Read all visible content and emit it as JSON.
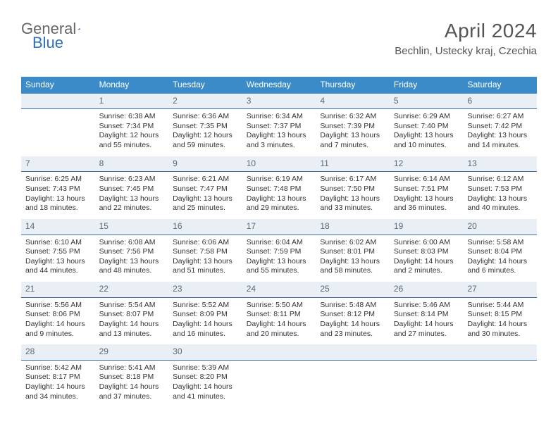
{
  "brand": {
    "part1": "General",
    "part2": "Blue"
  },
  "title": "April 2024",
  "location": "Bechlin, Ustecky kraj, Czechia",
  "colors": {
    "header_bg": "#3B8BC8",
    "header_text": "#ffffff",
    "daynum_bg": "#E9EFF4",
    "daynum_border": "#3B6FA0",
    "text": "#333333",
    "title_color": "#555555"
  },
  "weekdays": [
    "Sunday",
    "Monday",
    "Tuesday",
    "Wednesday",
    "Thursday",
    "Friday",
    "Saturday"
  ],
  "weeks": [
    {
      "nums": [
        "",
        "1",
        "2",
        "3",
        "4",
        "5",
        "6"
      ],
      "cells": [
        [],
        [
          "Sunrise: 6:38 AM",
          "Sunset: 7:34 PM",
          "Daylight: 12 hours and 55 minutes."
        ],
        [
          "Sunrise: 6:36 AM",
          "Sunset: 7:35 PM",
          "Daylight: 12 hours and 59 minutes."
        ],
        [
          "Sunrise: 6:34 AM",
          "Sunset: 7:37 PM",
          "Daylight: 13 hours and 3 minutes."
        ],
        [
          "Sunrise: 6:32 AM",
          "Sunset: 7:39 PM",
          "Daylight: 13 hours and 7 minutes."
        ],
        [
          "Sunrise: 6:29 AM",
          "Sunset: 7:40 PM",
          "Daylight: 13 hours and 10 minutes."
        ],
        [
          "Sunrise: 6:27 AM",
          "Sunset: 7:42 PM",
          "Daylight: 13 hours and 14 minutes."
        ]
      ]
    },
    {
      "nums": [
        "7",
        "8",
        "9",
        "10",
        "11",
        "12",
        "13"
      ],
      "cells": [
        [
          "Sunrise: 6:25 AM",
          "Sunset: 7:43 PM",
          "Daylight: 13 hours and 18 minutes."
        ],
        [
          "Sunrise: 6:23 AM",
          "Sunset: 7:45 PM",
          "Daylight: 13 hours and 22 minutes."
        ],
        [
          "Sunrise: 6:21 AM",
          "Sunset: 7:47 PM",
          "Daylight: 13 hours and 25 minutes."
        ],
        [
          "Sunrise: 6:19 AM",
          "Sunset: 7:48 PM",
          "Daylight: 13 hours and 29 minutes."
        ],
        [
          "Sunrise: 6:17 AM",
          "Sunset: 7:50 PM",
          "Daylight: 13 hours and 33 minutes."
        ],
        [
          "Sunrise: 6:14 AM",
          "Sunset: 7:51 PM",
          "Daylight: 13 hours and 36 minutes."
        ],
        [
          "Sunrise: 6:12 AM",
          "Sunset: 7:53 PM",
          "Daylight: 13 hours and 40 minutes."
        ]
      ]
    },
    {
      "nums": [
        "14",
        "15",
        "16",
        "17",
        "18",
        "19",
        "20"
      ],
      "cells": [
        [
          "Sunrise: 6:10 AM",
          "Sunset: 7:55 PM",
          "Daylight: 13 hours and 44 minutes."
        ],
        [
          "Sunrise: 6:08 AM",
          "Sunset: 7:56 PM",
          "Daylight: 13 hours and 48 minutes."
        ],
        [
          "Sunrise: 6:06 AM",
          "Sunset: 7:58 PM",
          "Daylight: 13 hours and 51 minutes."
        ],
        [
          "Sunrise: 6:04 AM",
          "Sunset: 7:59 PM",
          "Daylight: 13 hours and 55 minutes."
        ],
        [
          "Sunrise: 6:02 AM",
          "Sunset: 8:01 PM",
          "Daylight: 13 hours and 58 minutes."
        ],
        [
          "Sunrise: 6:00 AM",
          "Sunset: 8:03 PM",
          "Daylight: 14 hours and 2 minutes."
        ],
        [
          "Sunrise: 5:58 AM",
          "Sunset: 8:04 PM",
          "Daylight: 14 hours and 6 minutes."
        ]
      ]
    },
    {
      "nums": [
        "21",
        "22",
        "23",
        "24",
        "25",
        "26",
        "27"
      ],
      "cells": [
        [
          "Sunrise: 5:56 AM",
          "Sunset: 8:06 PM",
          "Daylight: 14 hours and 9 minutes."
        ],
        [
          "Sunrise: 5:54 AM",
          "Sunset: 8:07 PM",
          "Daylight: 14 hours and 13 minutes."
        ],
        [
          "Sunrise: 5:52 AM",
          "Sunset: 8:09 PM",
          "Daylight: 14 hours and 16 minutes."
        ],
        [
          "Sunrise: 5:50 AM",
          "Sunset: 8:11 PM",
          "Daylight: 14 hours and 20 minutes."
        ],
        [
          "Sunrise: 5:48 AM",
          "Sunset: 8:12 PM",
          "Daylight: 14 hours and 23 minutes."
        ],
        [
          "Sunrise: 5:46 AM",
          "Sunset: 8:14 PM",
          "Daylight: 14 hours and 27 minutes."
        ],
        [
          "Sunrise: 5:44 AM",
          "Sunset: 8:15 PM",
          "Daylight: 14 hours and 30 minutes."
        ]
      ]
    },
    {
      "nums": [
        "28",
        "29",
        "30",
        "",
        "",
        "",
        ""
      ],
      "cells": [
        [
          "Sunrise: 5:42 AM",
          "Sunset: 8:17 PM",
          "Daylight: 14 hours and 34 minutes."
        ],
        [
          "Sunrise: 5:41 AM",
          "Sunset: 8:18 PM",
          "Daylight: 14 hours and 37 minutes."
        ],
        [
          "Sunrise: 5:39 AM",
          "Sunset: 8:20 PM",
          "Daylight: 14 hours and 41 minutes."
        ],
        [],
        [],
        [],
        []
      ]
    }
  ]
}
